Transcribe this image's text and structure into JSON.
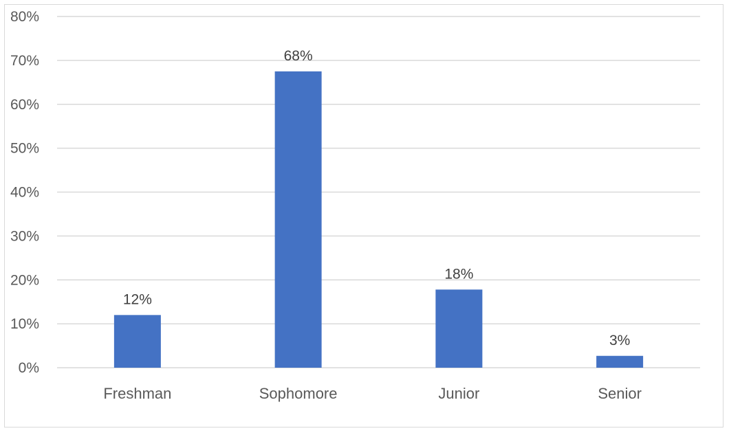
{
  "chart_data": {
    "type": "bar",
    "categories": [
      "Freshman",
      "Sophomore",
      "Junior",
      "Senior"
    ],
    "values": [
      12,
      67.5,
      17.8,
      2.7
    ],
    "data_labels": [
      "12%",
      "68%",
      "18%",
      "3%"
    ],
    "ylim": [
      0,
      80
    ],
    "yticks": [
      0,
      10,
      20,
      30,
      40,
      50,
      60,
      70,
      80
    ],
    "ytick_labels": [
      "0%",
      "10%",
      "20%",
      "30%",
      "40%",
      "50%",
      "60%",
      "70%",
      "80%"
    ],
    "grid": true,
    "legend": "none",
    "bar_color": "#4472C4",
    "grid_color": "#d9d9d9"
  }
}
